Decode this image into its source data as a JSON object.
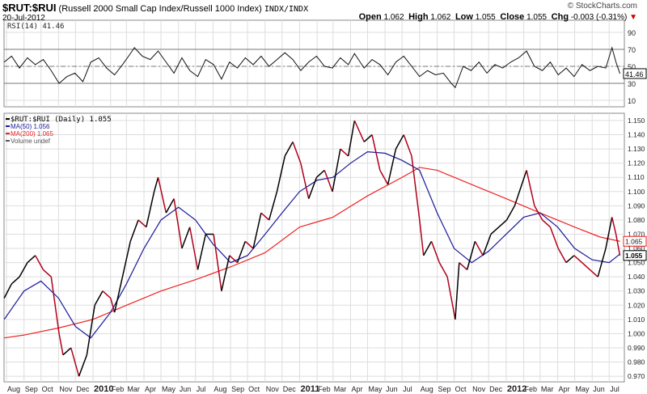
{
  "header": {
    "symbol": "$RUT:$RUI",
    "description": "(Russell 2000 Small Cap Index/Russell 1000 Index)",
    "exchange": "INDX/INDX",
    "date": "20-Jul-2012",
    "credit": "© StockCharts.com",
    "open_label": "Open",
    "open": "1.062",
    "high_label": "High",
    "high": "1.062",
    "low_label": "Low",
    "low": "1.055",
    "close_label": "Close",
    "close": "1.055",
    "chg_label": "Chg",
    "chg": "-0.003 (-0.31%)",
    "chg_arrow": "▼"
  },
  "colors": {
    "price_up": "#000000",
    "price_down": "#b0001a",
    "ma50": "#1a1a99",
    "ma200": "#ee2222",
    "grid": "#dddddd"
  },
  "chart_data": [
    {
      "type": "line",
      "panel": "rsi",
      "legend": "RSI(14) 41.46",
      "current_label": "41.46",
      "ylim": [
        0,
        100
      ],
      "yticks": [
        90,
        70,
        50,
        30,
        10
      ],
      "reference_lines": [
        70,
        50,
        30
      ],
      "x": [
        "2009-07-28",
        "2009-08-10",
        "2009-08-24",
        "2009-09-07",
        "2009-09-21",
        "2009-10-05",
        "2009-10-19",
        "2009-11-02",
        "2009-11-16",
        "2009-11-30",
        "2009-12-14",
        "2009-12-28",
        "2010-01-11",
        "2010-01-25",
        "2010-02-08",
        "2010-02-22",
        "2010-03-08",
        "2010-03-15",
        "2010-03-29",
        "2010-04-12",
        "2010-04-26",
        "2010-05-10",
        "2010-05-24",
        "2010-06-07",
        "2010-06-21",
        "2010-07-05",
        "2010-07-19",
        "2010-08-02",
        "2010-08-16",
        "2010-08-30",
        "2010-09-13",
        "2010-09-27",
        "2010-10-11",
        "2010-10-25",
        "2010-11-08",
        "2010-11-22",
        "2010-12-06",
        "2010-12-20",
        "2011-01-03",
        "2011-01-17",
        "2011-01-31",
        "2011-02-14",
        "2011-02-28",
        "2011-03-14",
        "2011-03-28",
        "2011-04-08",
        "2011-04-25",
        "2011-05-09",
        "2011-05-23",
        "2011-06-06",
        "2011-06-20",
        "2011-07-04",
        "2011-07-18",
        "2011-08-01",
        "2011-08-15",
        "2011-08-29",
        "2011-09-12",
        "2011-09-26",
        "2011-10-03",
        "2011-10-17",
        "2011-10-31",
        "2011-11-14",
        "2011-11-28",
        "2011-12-12",
        "2011-12-26",
        "2012-01-09",
        "2012-01-23",
        "2012-02-06",
        "2012-02-20",
        "2012-03-05",
        "2012-03-19",
        "2012-04-02",
        "2012-04-16",
        "2012-04-30",
        "2012-05-14",
        "2012-05-28",
        "2012-06-11",
        "2012-06-25",
        "2012-07-06",
        "2012-07-13",
        "2012-07-20"
      ],
      "values": [
        55,
        62,
        48,
        60,
        52,
        58,
        45,
        30,
        38,
        42,
        32,
        55,
        60,
        48,
        40,
        52,
        65,
        72,
        62,
        58,
        68,
        55,
        42,
        60,
        45,
        38,
        58,
        52,
        35,
        55,
        48,
        60,
        52,
        62,
        50,
        58,
        66,
        58,
        45,
        55,
        62,
        50,
        48,
        60,
        52,
        65,
        48,
        58,
        52,
        40,
        55,
        62,
        50,
        38,
        45,
        40,
        42,
        30,
        25,
        50,
        45,
        55,
        42,
        52,
        48,
        55,
        60,
        68,
        50,
        45,
        55,
        40,
        48,
        38,
        52,
        45,
        50,
        48,
        72,
        55,
        41.46
      ]
    },
    {
      "type": "line",
      "panel": "price",
      "legend": [
        "$RUT:$RUI (Daily) 1.055",
        "MA(50) 1.056",
        "MA(200) 1.065",
        "Volume undef"
      ],
      "ylim": [
        0.965,
        1.155
      ],
      "yticks": [
        1.15,
        1.14,
        1.13,
        1.12,
        1.11,
        1.1,
        1.09,
        1.08,
        1.07,
        1.06,
        1.05,
        1.04,
        1.03,
        1.02,
        1.01,
        1.0,
        0.99,
        0.98,
        0.97
      ],
      "current_labels": {
        "ma200": "1.065",
        "price": "1.055"
      },
      "xtick_labels": [
        [
          "2009-08-01",
          "Aug"
        ],
        [
          "2009-09-01",
          "Sep"
        ],
        [
          "2009-10-01",
          "Oct"
        ],
        [
          "2009-11-01",
          "Nov"
        ],
        [
          "2009-12-01",
          "Dec"
        ],
        [
          "2010-01-01",
          "2010"
        ],
        [
          "2010-02-01",
          "Feb"
        ],
        [
          "2010-03-01",
          "Mar"
        ],
        [
          "2010-04-01",
          "Apr"
        ],
        [
          "2010-05-01",
          "May"
        ],
        [
          "2010-06-01",
          "Jun"
        ],
        [
          "2010-07-01",
          "Jul"
        ],
        [
          "2010-08-01",
          "Aug"
        ],
        [
          "2010-09-01",
          "Sep"
        ],
        [
          "2010-10-01",
          "Oct"
        ],
        [
          "2010-11-01",
          "Nov"
        ],
        [
          "2010-12-01",
          "Dec"
        ],
        [
          "2011-01-01",
          "2011"
        ],
        [
          "2011-02-01",
          "Feb"
        ],
        [
          "2011-03-01",
          "Mar"
        ],
        [
          "2011-04-01",
          "Apr"
        ],
        [
          "2011-05-01",
          "May"
        ],
        [
          "2011-06-01",
          "Jun"
        ],
        [
          "2011-07-01",
          "Jul"
        ],
        [
          "2011-08-01",
          "Aug"
        ],
        [
          "2011-09-01",
          "Sep"
        ],
        [
          "2011-10-01",
          "Oct"
        ],
        [
          "2011-11-01",
          "Nov"
        ],
        [
          "2011-12-01",
          "Dec"
        ],
        [
          "2012-01-01",
          "2012"
        ],
        [
          "2012-02-01",
          "Feb"
        ],
        [
          "2012-03-01",
          "Mar"
        ],
        [
          "2012-04-01",
          "Apr"
        ],
        [
          "2012-05-01",
          "May"
        ],
        [
          "2012-06-01",
          "Jun"
        ],
        [
          "2012-07-01",
          "Jul"
        ]
      ],
      "series": [
        {
          "name": "$RUT:$RUI",
          "points": [
            [
              "2009-07-28",
              1.025
            ],
            [
              "2009-08-10",
              1.035
            ],
            [
              "2009-08-24",
              1.04
            ],
            [
              "2009-09-07",
              1.05
            ],
            [
              "2009-09-21",
              1.055
            ],
            [
              "2009-10-05",
              1.045
            ],
            [
              "2009-10-19",
              1.04
            ],
            [
              "2009-11-02",
              1.0
            ],
            [
              "2009-11-09",
              0.985
            ],
            [
              "2009-11-23",
              0.99
            ],
            [
              "2009-12-07",
              0.97
            ],
            [
              "2009-12-21",
              0.985
            ],
            [
              "2010-01-04",
              1.02
            ],
            [
              "2010-01-18",
              1.03
            ],
            [
              "2010-02-01",
              1.025
            ],
            [
              "2010-02-08",
              1.015
            ],
            [
              "2010-02-22",
              1.04
            ],
            [
              "2010-03-08",
              1.065
            ],
            [
              "2010-03-22",
              1.08
            ],
            [
              "2010-04-05",
              1.075
            ],
            [
              "2010-04-19",
              1.1
            ],
            [
              "2010-04-26",
              1.11
            ],
            [
              "2010-05-10",
              1.085
            ],
            [
              "2010-05-24",
              1.095
            ],
            [
              "2010-06-07",
              1.06
            ],
            [
              "2010-06-21",
              1.075
            ],
            [
              "2010-07-05",
              1.045
            ],
            [
              "2010-07-19",
              1.07
            ],
            [
              "2010-08-02",
              1.07
            ],
            [
              "2010-08-16",
              1.03
            ],
            [
              "2010-08-30",
              1.055
            ],
            [
              "2010-09-13",
              1.05
            ],
            [
              "2010-09-27",
              1.065
            ],
            [
              "2010-10-11",
              1.06
            ],
            [
              "2010-10-25",
              1.085
            ],
            [
              "2010-11-08",
              1.08
            ],
            [
              "2010-11-22",
              1.1
            ],
            [
              "2010-12-06",
              1.125
            ],
            [
              "2010-12-20",
              1.135
            ],
            [
              "2011-01-03",
              1.12
            ],
            [
              "2011-01-17",
              1.095
            ],
            [
              "2011-01-31",
              1.11
            ],
            [
              "2011-02-14",
              1.115
            ],
            [
              "2011-02-28",
              1.1
            ],
            [
              "2011-03-14",
              1.13
            ],
            [
              "2011-03-28",
              1.125
            ],
            [
              "2011-04-08",
              1.15
            ],
            [
              "2011-04-25",
              1.135
            ],
            [
              "2011-05-09",
              1.14
            ],
            [
              "2011-05-23",
              1.115
            ],
            [
              "2011-06-06",
              1.105
            ],
            [
              "2011-06-20",
              1.13
            ],
            [
              "2011-07-04",
              1.14
            ],
            [
              "2011-07-18",
              1.125
            ],
            [
              "2011-08-01",
              1.08
            ],
            [
              "2011-08-08",
              1.055
            ],
            [
              "2011-08-22",
              1.065
            ],
            [
              "2011-09-05",
              1.05
            ],
            [
              "2011-09-19",
              1.04
            ],
            [
              "2011-10-03",
              1.01
            ],
            [
              "2011-10-10",
              1.05
            ],
            [
              "2011-10-24",
              1.045
            ],
            [
              "2011-11-07",
              1.065
            ],
            [
              "2011-11-21",
              1.055
            ],
            [
              "2011-12-05",
              1.07
            ],
            [
              "2011-12-19",
              1.075
            ],
            [
              "2012-01-02",
              1.08
            ],
            [
              "2012-01-16",
              1.09
            ],
            [
              "2012-02-06",
              1.115
            ],
            [
              "2012-02-20",
              1.09
            ],
            [
              "2012-03-05",
              1.08
            ],
            [
              "2012-03-19",
              1.075
            ],
            [
              "2012-04-02",
              1.06
            ],
            [
              "2012-04-16",
              1.05
            ],
            [
              "2012-04-30",
              1.055
            ],
            [
              "2012-05-14",
              1.05
            ],
            [
              "2012-05-28",
              1.045
            ],
            [
              "2012-06-11",
              1.04
            ],
            [
              "2012-06-25",
              1.06
            ],
            [
              "2012-07-06",
              1.082
            ],
            [
              "2012-07-13",
              1.07
            ],
            [
              "2012-07-20",
              1.055
            ]
          ]
        },
        {
          "name": "MA(50)",
          "points": [
            [
              "2009-07-28",
              1.01
            ],
            [
              "2009-09-01",
              1.03
            ],
            [
              "2009-10-01",
              1.037
            ],
            [
              "2009-11-01",
              1.025
            ],
            [
              "2009-12-01",
              1.005
            ],
            [
              "2009-12-28",
              0.997
            ],
            [
              "2010-02-01",
              1.015
            ],
            [
              "2010-03-01",
              1.035
            ],
            [
              "2010-04-01",
              1.06
            ],
            [
              "2010-05-01",
              1.08
            ],
            [
              "2010-06-01",
              1.089
            ],
            [
              "2010-07-01",
              1.08
            ],
            [
              "2010-08-01",
              1.063
            ],
            [
              "2010-09-01",
              1.05
            ],
            [
              "2010-10-01",
              1.055
            ],
            [
              "2010-11-01",
              1.07
            ],
            [
              "2010-12-01",
              1.085
            ],
            [
              "2011-01-01",
              1.1
            ],
            [
              "2011-02-01",
              1.108
            ],
            [
              "2011-03-01",
              1.11
            ],
            [
              "2011-04-01",
              1.12
            ],
            [
              "2011-05-01",
              1.128
            ],
            [
              "2011-06-01",
              1.127
            ],
            [
              "2011-07-01",
              1.122
            ],
            [
              "2011-08-01",
              1.115
            ],
            [
              "2011-09-01",
              1.085
            ],
            [
              "2011-10-01",
              1.06
            ],
            [
              "2011-11-01",
              1.05
            ],
            [
              "2011-12-01",
              1.058
            ],
            [
              "2012-01-01",
              1.07
            ],
            [
              "2012-02-01",
              1.082
            ],
            [
              "2012-03-01",
              1.085
            ],
            [
              "2012-04-01",
              1.075
            ],
            [
              "2012-05-01",
              1.06
            ],
            [
              "2012-06-01",
              1.052
            ],
            [
              "2012-07-01",
              1.05
            ],
            [
              "2012-07-20",
              1.056
            ]
          ]
        },
        {
          "name": "MA(200)",
          "points": [
            [
              "2009-07-28",
              0.997
            ],
            [
              "2009-09-01",
              0.999
            ],
            [
              "2009-11-01",
              1.004
            ],
            [
              "2010-01-01",
              1.01
            ],
            [
              "2010-03-01",
              1.02
            ],
            [
              "2010-05-01",
              1.03
            ],
            [
              "2010-07-01",
              1.038
            ],
            [
              "2010-09-01",
              1.047
            ],
            [
              "2010-11-01",
              1.057
            ],
            [
              "2011-01-01",
              1.075
            ],
            [
              "2011-03-01",
              1.082
            ],
            [
              "2011-05-01",
              1.097
            ],
            [
              "2011-07-01",
              1.11
            ],
            [
              "2011-08-01",
              1.117
            ],
            [
              "2011-09-01",
              1.115
            ],
            [
              "2011-11-01",
              1.105
            ],
            [
              "2012-01-01",
              1.095
            ],
            [
              "2012-03-01",
              1.085
            ],
            [
              "2012-05-01",
              1.075
            ],
            [
              "2012-06-15",
              1.068
            ],
            [
              "2012-07-20",
              1.065
            ]
          ]
        }
      ]
    }
  ]
}
